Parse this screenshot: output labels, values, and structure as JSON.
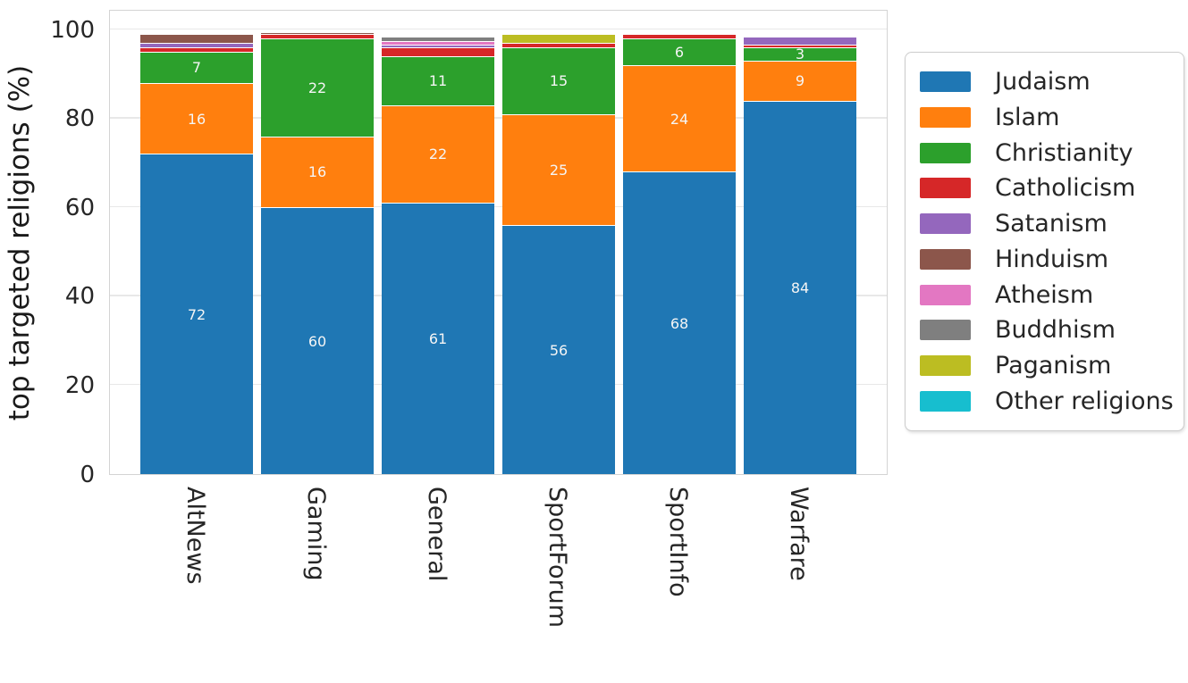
{
  "chart_data": {
    "type": "bar",
    "stacked": true,
    "title": "",
    "xlabel": "",
    "ylabel": "top targeted religions (%)",
    "ylim": [
      0,
      100
    ],
    "yticks": [
      0,
      20,
      40,
      60,
      80,
      100
    ],
    "grid": true,
    "legend_position": "right",
    "bar_label_min_value": 3,
    "categories": [
      "AltNews",
      "Gaming",
      "General",
      "SportForum",
      "SportInfo",
      "Warfare"
    ],
    "series": [
      {
        "name": "Judaism",
        "color": "#1f77b4",
        "values": [
          72,
          60,
          61,
          56,
          68,
          84
        ]
      },
      {
        "name": "Islam",
        "color": "#ff7f0e",
        "values": [
          16,
          16,
          22,
          25,
          24,
          9
        ]
      },
      {
        "name": "Christianity",
        "color": "#2ca02c",
        "values": [
          7,
          22,
          11,
          15,
          6,
          3
        ]
      },
      {
        "name": "Catholicism",
        "color": "#d62728",
        "values": [
          1,
          1,
          2,
          1,
          1,
          0.5
        ]
      },
      {
        "name": "Satanism",
        "color": "#9467bd",
        "values": [
          1,
          0,
          0.5,
          0,
          0,
          2
        ]
      },
      {
        "name": "Hinduism",
        "color": "#8c564b",
        "values": [
          2,
          0.5,
          0,
          0,
          0,
          0
        ]
      },
      {
        "name": "Atheism",
        "color": "#e377c2",
        "values": [
          0,
          0,
          1,
          0,
          0,
          0
        ]
      },
      {
        "name": "Buddhism",
        "color": "#7f7f7f",
        "values": [
          0,
          0,
          1,
          0,
          0,
          0
        ]
      },
      {
        "name": "Paganism",
        "color": "#bcbd22",
        "values": [
          0,
          0,
          0,
          2,
          0,
          0
        ]
      },
      {
        "name": "Other religions",
        "color": "#17becf",
        "values": [
          0,
          0,
          0,
          0,
          0,
          0
        ]
      }
    ],
    "visible_bar_labels": {
      "AltNews": {
        "Judaism": "72",
        "Islam": "16",
        "Christianity": "7"
      },
      "Gaming": {
        "Judaism": "60",
        "Islam": "16",
        "Christianity": "22"
      },
      "General": {
        "Judaism": "61",
        "Islam": "22",
        "Christianity": "11"
      },
      "SportForum": {
        "Judaism": "56",
        "Islam": "25",
        "Christianity": "15"
      },
      "SportInfo": {
        "Judaism": "68",
        "Islam": "24",
        "Christianity": "6"
      },
      "Warfare": {
        "Judaism": "84",
        "Islam": "9",
        "Christianity": "3"
      }
    },
    "colors": {
      "grid": "#e8e8e8",
      "spine": "#d4d4d4",
      "tick_text": "#262626",
      "bar_label_text": "#f5f5f5",
      "legend_border": "#cccccc",
      "background": "#ffffff"
    }
  }
}
